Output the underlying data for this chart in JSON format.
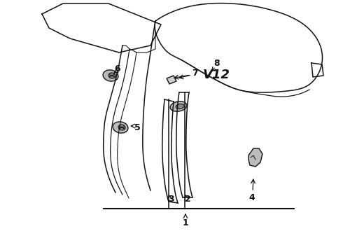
{
  "background_color": "#ffffff",
  "line_color": "#111111",
  "text_color": "#000000",
  "figsize": [
    4.9,
    3.6
  ],
  "dpi": 100,
  "lw": 1.1
}
